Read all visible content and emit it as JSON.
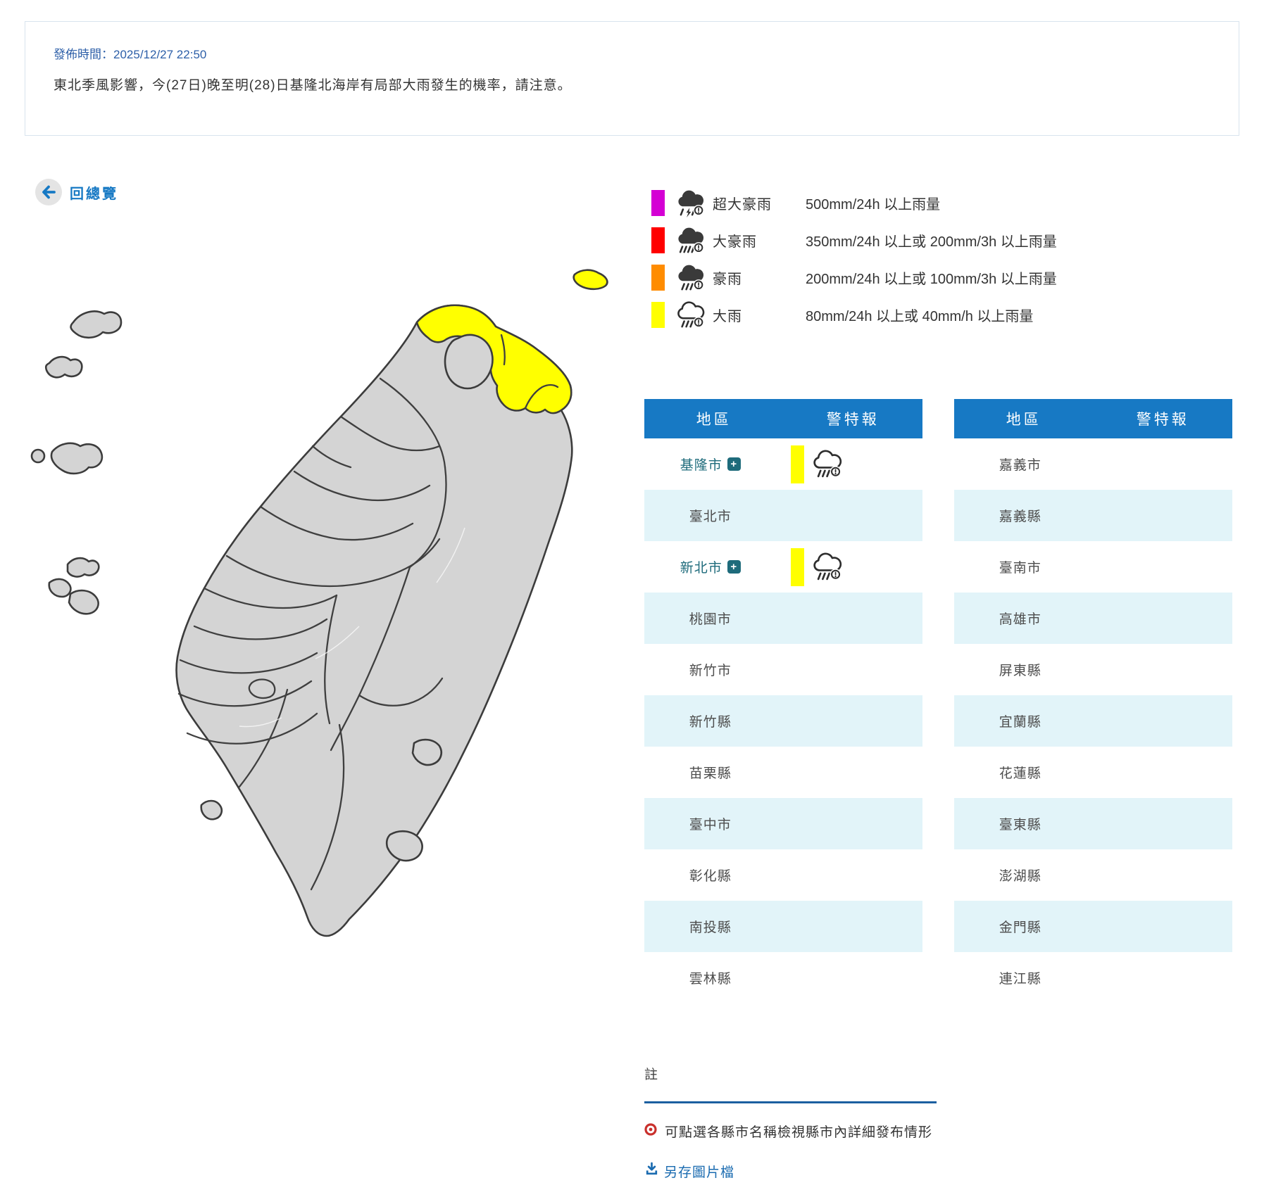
{
  "notice": {
    "publish_time": "發佈時間：2025/12/27 22:50",
    "description": "東北季風影響，今(27日)晚至明(28)日基隆北海岸有局部大雨發生的機率，請注意。"
  },
  "back_link": {
    "label": "回總覽",
    "icon": "arrow-left-icon"
  },
  "legend": {
    "items": [
      {
        "label": "超大豪雨",
        "desc": "500mm/24h 以上雨量",
        "color": "#d400d4",
        "icon": "cloud-storm-icon"
      },
      {
        "label": "大豪雨",
        "desc": "350mm/24h 以上或 200mm/3h 以上雨量",
        "color": "#ff0000",
        "icon": "cloud-heavy-rain-icon"
      },
      {
        "label": "豪雨",
        "desc": "200mm/24h 以上或 100mm/3h 以上雨量",
        "color": "#ff8c00",
        "icon": "cloud-rain-icon"
      },
      {
        "label": "大雨",
        "desc": "80mm/24h 以上或 40mm/h 以上雨量",
        "color": "#ffff00",
        "icon": "cloud-rain-outline-icon"
      }
    ]
  },
  "tables": {
    "columns": {
      "region": "地區",
      "warning": "警特報"
    },
    "left_rows": [
      {
        "region": "基隆市",
        "expandable": true,
        "warning": {
          "level": "大雨",
          "color": "#ffff00",
          "icon": "cloud-rain-outline-icon"
        }
      },
      {
        "region": "臺北市"
      },
      {
        "region": "新北市",
        "expandable": true,
        "warning": {
          "level": "大雨",
          "color": "#ffff00",
          "icon": "cloud-rain-outline-icon"
        }
      },
      {
        "region": "桃園市"
      },
      {
        "region": "新竹市"
      },
      {
        "region": "新竹縣"
      },
      {
        "region": "苗栗縣"
      },
      {
        "region": "臺中市"
      },
      {
        "region": "彰化縣"
      },
      {
        "region": "南投縣"
      },
      {
        "region": "雲林縣"
      }
    ],
    "right_rows": [
      {
        "region": "嘉義市"
      },
      {
        "region": "嘉義縣"
      },
      {
        "region": "臺南市"
      },
      {
        "region": "高雄市"
      },
      {
        "region": "屏東縣"
      },
      {
        "region": "宜蘭縣"
      },
      {
        "region": "花蓮縣"
      },
      {
        "region": "臺東縣"
      },
      {
        "region": "澎湖縣"
      },
      {
        "region": "金門縣"
      },
      {
        "region": "連江縣"
      }
    ]
  },
  "notes": {
    "title": "註",
    "items": [
      {
        "text": "可點選各縣市名稱檢視縣市內詳細發布情形",
        "icon": "dot-circle-icon"
      }
    ],
    "save_link": {
      "label": "另存圖片檔",
      "icon": "download-icon"
    }
  },
  "map": {
    "land_color": "#d4d4d4",
    "border_color": "#3c3c3c",
    "highlight_color": "#ffff00"
  }
}
